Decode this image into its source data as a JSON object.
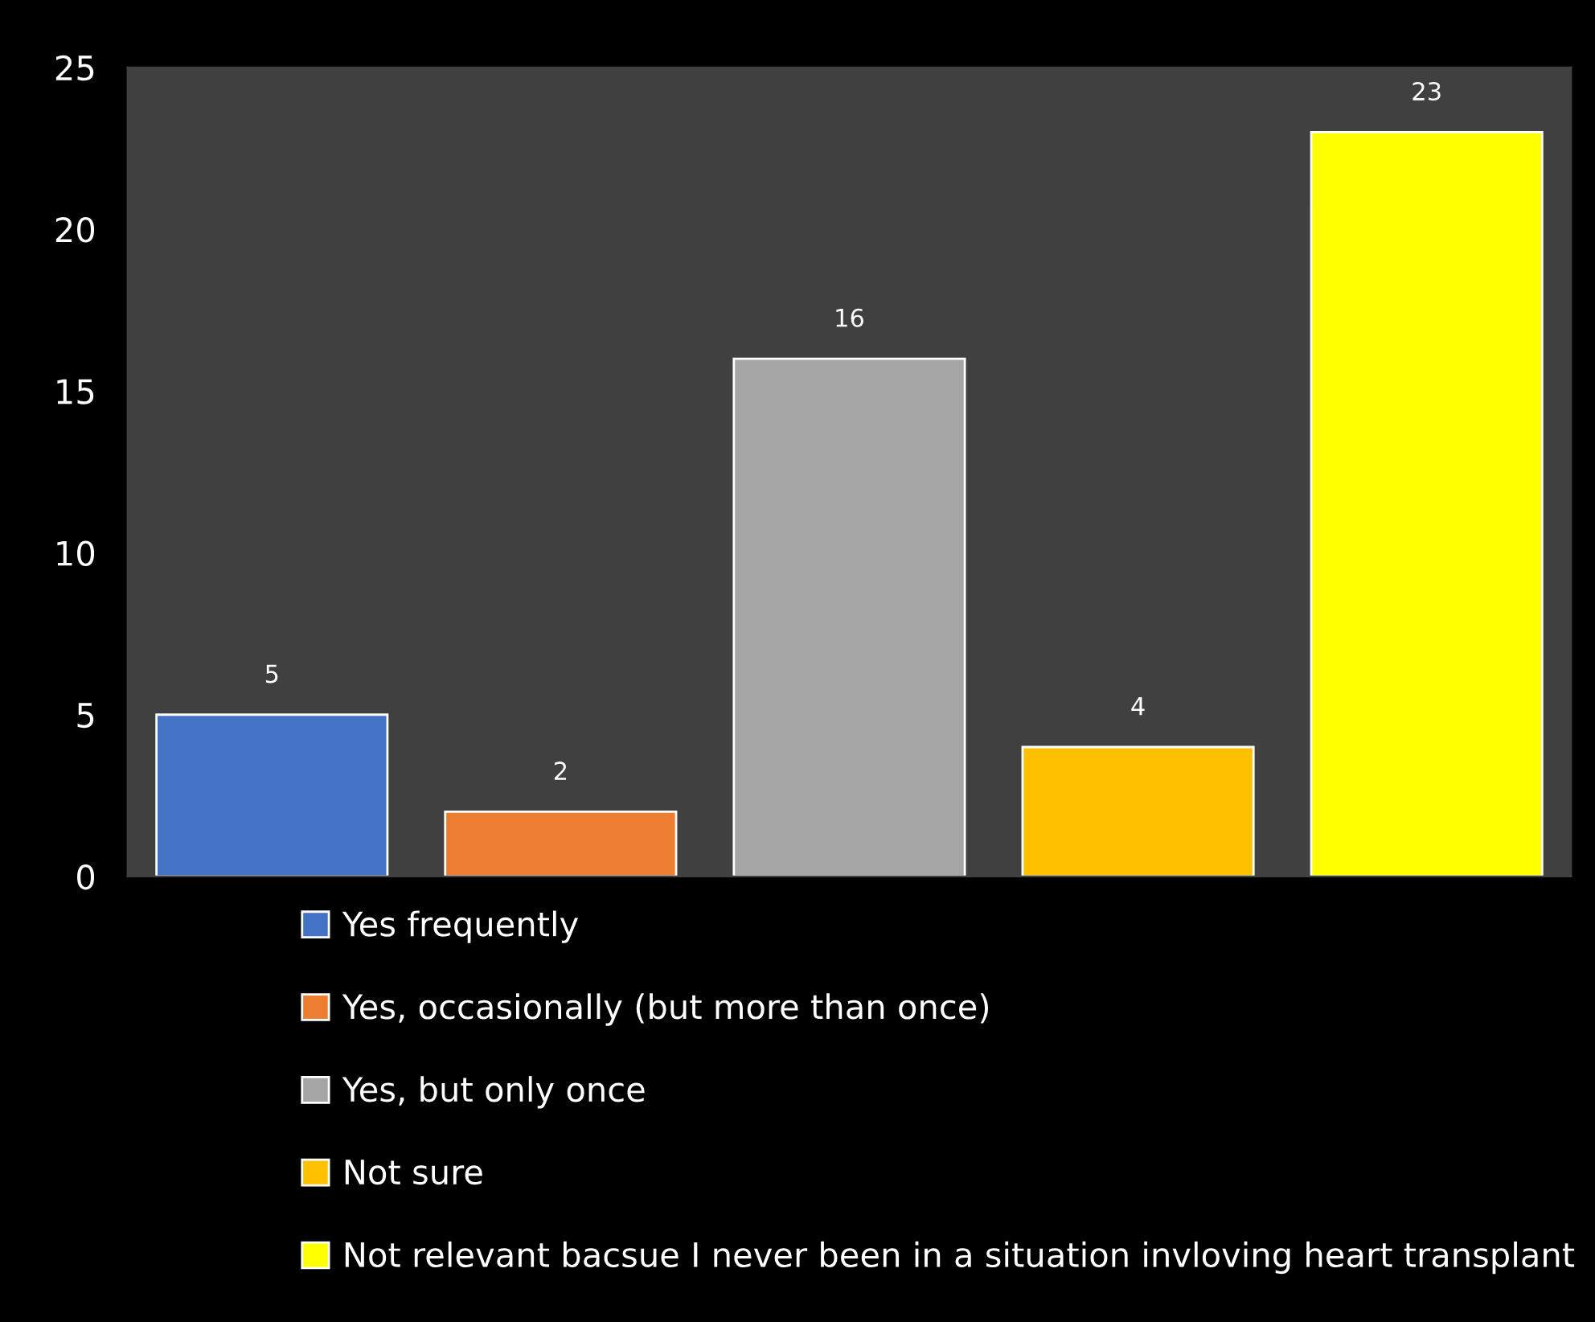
{
  "chart_data": {
    "type": "bar",
    "categories": [
      null,
      null,
      null,
      null,
      null
    ],
    "series": [
      {
        "name": "Yes frequently",
        "color": "#4472c4",
        "values": [
          5,
          null,
          null,
          null,
          null
        ]
      },
      {
        "name": "Yes, occasionally (but more than once)",
        "color": "#ed7d31",
        "values": [
          null,
          2,
          null,
          null,
          null
        ]
      },
      {
        "name": "Yes, but only once",
        "color": "#a5a5a5",
        "values": [
          null,
          null,
          16,
          null,
          null
        ]
      },
      {
        "name": "Not sure",
        "color": "#ffc000",
        "values": [
          null,
          null,
          null,
          4,
          null
        ]
      },
      {
        "name": "Not relevant bacsue I never been in a situation invloving heart transplant",
        "color": "#ffff00",
        "values": [
          null,
          null,
          null,
          null,
          23
        ]
      }
    ],
    "ylim": [
      0,
      25
    ],
    "yticks": [
      0,
      5,
      10,
      15,
      20,
      25
    ],
    "data_labels": true,
    "grid": false,
    "legend": "bottom"
  }
}
